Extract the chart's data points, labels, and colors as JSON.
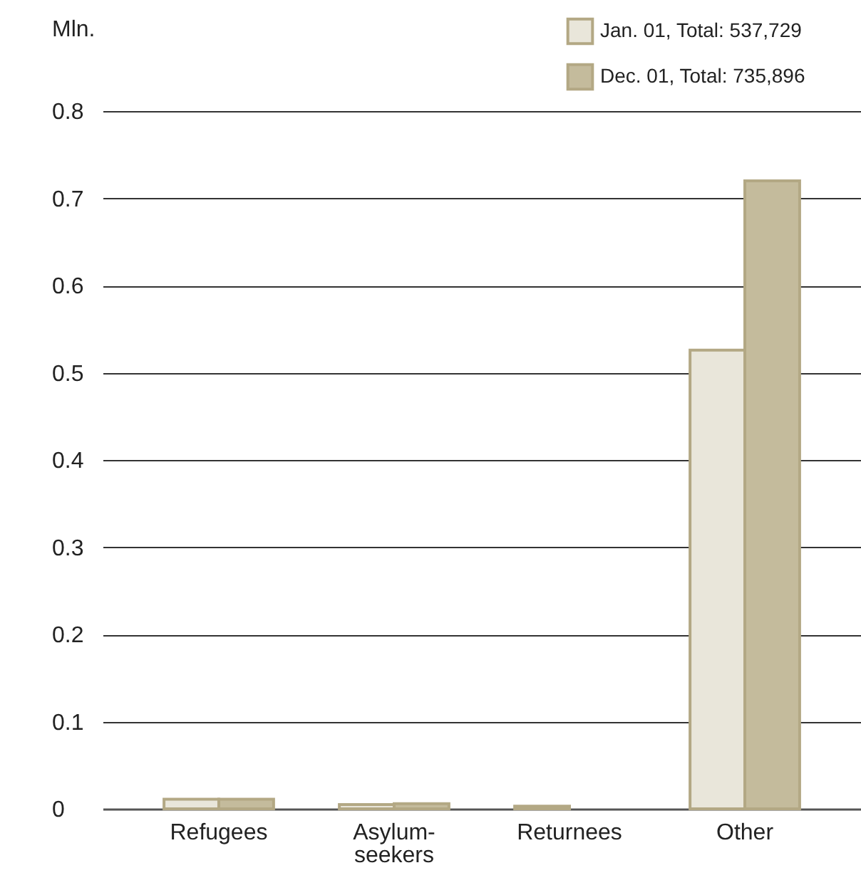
{
  "chart_data": {
    "type": "bar",
    "ylabel": "Mln.",
    "categories": [
      "Refugees",
      "Asylum-seekers",
      "Returnees",
      "Other"
    ],
    "series": [
      {
        "name": "Jan. 01, Total: 537,729",
        "color": "#e9e6da",
        "values": [
          0.011,
          0.005,
          0.003,
          0.526
        ]
      },
      {
        "name": "Dec. 01, Total: 735,896",
        "color": "#c4bb9c",
        "values": [
          0.011,
          0.006,
          null,
          0.72
        ]
      }
    ],
    "ylim": [
      0,
      0.8
    ],
    "yticks": [
      0,
      0.1,
      0.2,
      0.3,
      0.4,
      0.5,
      0.6,
      0.7,
      0.8
    ],
    "grid": "y",
    "legend": "top right"
  }
}
